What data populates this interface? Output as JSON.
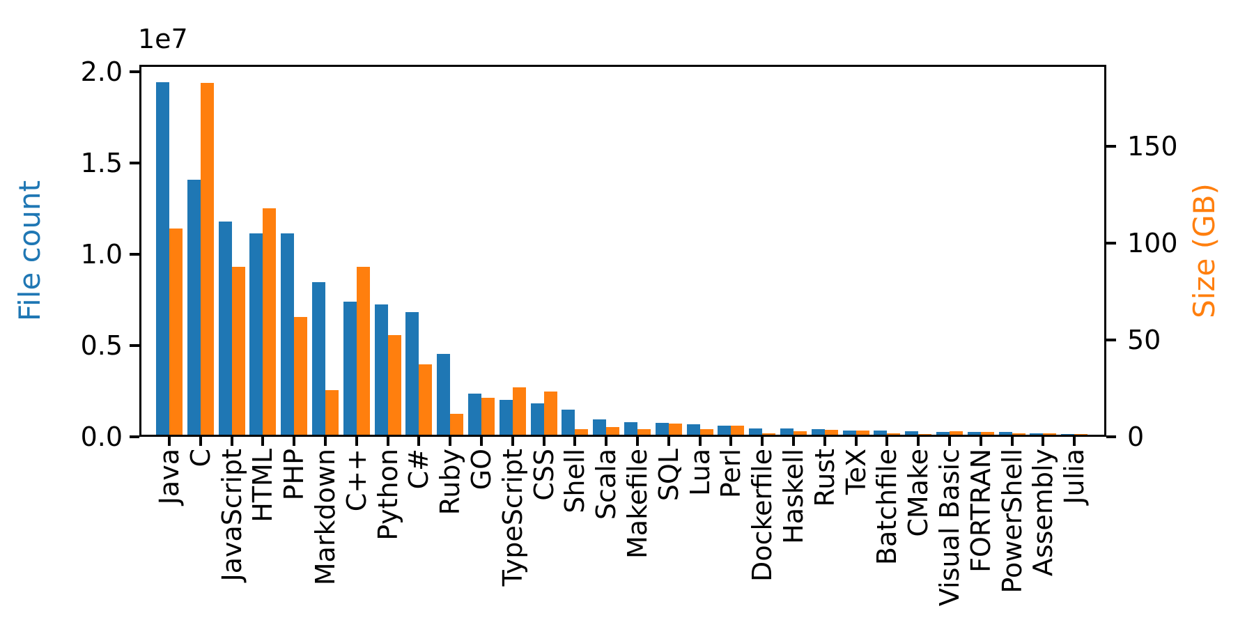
{
  "chart_data": {
    "type": "bar",
    "title": "",
    "grid": false,
    "legend": "none",
    "x_tick_rotation": 90,
    "categories": [
      "Java",
      "C",
      "JavaScript",
      "HTML",
      "PHP",
      "Markdown",
      "C++",
      "Python",
      "C#",
      "Ruby",
      "GO",
      "TypeScript",
      "CSS",
      "Shell",
      "Scala",
      "Makefile",
      "SQL",
      "Lua",
      "Perl",
      "Dockerfile",
      "Haskell",
      "Rust",
      "TeX",
      "Batchfile",
      "CMake",
      "Visual Basic",
      "FORTRAN",
      "PowerShell",
      "Assembly",
      "Julia"
    ],
    "series": [
      {
        "name": "File count",
        "axis": "left",
        "color": "#1f77b4",
        "values": [
          19548190,
          14143113,
          11839883,
          11178557,
          11177610,
          8464626,
          7380520,
          7226626,
          6811652,
          4473331,
          2265436,
          1940406,
          1734406,
          1385648,
          835755,
          679430,
          656671,
          578554,
          497949,
          366505,
          340380,
          322431,
          251015,
          236945,
          175282,
          155652,
          142038,
          136846,
          82905,
          58317
        ]
      },
      {
        "name": "Size (GB)",
        "axis": "right",
        "color": "#ff7f0e",
        "values": [
          107.7,
          183.8,
          87.8,
          118.1,
          61.4,
          23.1,
          87.7,
          52.0,
          36.8,
          11.0,
          19.3,
          24.6,
          22.7,
          3.0,
          3.9,
          2.9,
          5.7,
          2.8,
          4.7,
          0.7,
          1.9,
          2.7,
          2.2,
          0.7,
          0.5,
          1.9,
          1.6,
          0.7,
          0.8,
          0.3
        ]
      }
    ],
    "left_axis": {
      "label": "File count",
      "color": "#1f77b4",
      "offset_text": "1e7",
      "tick_values": [
        0,
        5000000,
        10000000,
        15000000,
        20000000
      ],
      "tick_labels": [
        "0.0",
        "0.5",
        "1.0",
        "1.5",
        "2.0"
      ],
      "ylim": [
        0,
        20400000
      ]
    },
    "right_axis": {
      "label": "Size (GB)",
      "color": "#ff7f0e",
      "tick_values": [
        0,
        50,
        100,
        150
      ],
      "tick_labels": [
        "0",
        "50",
        "100",
        "150"
      ],
      "ylim": [
        0,
        192
      ]
    }
  }
}
